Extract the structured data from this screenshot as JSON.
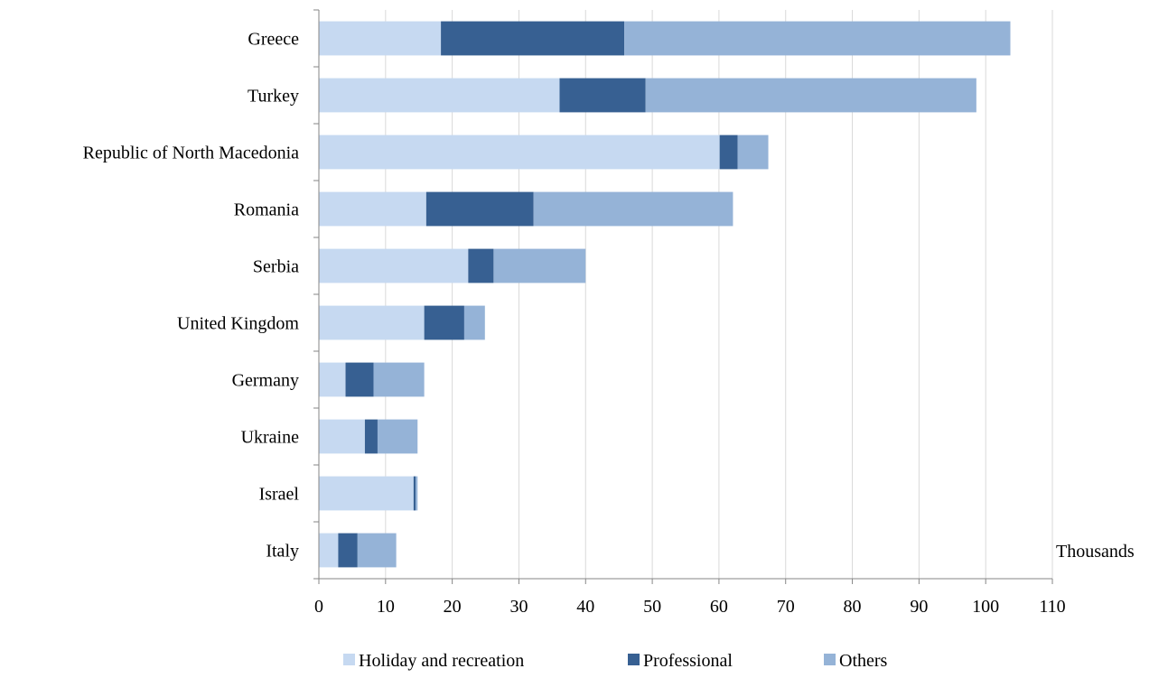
{
  "chart_data": {
    "type": "bar",
    "orientation": "horizontal",
    "stacked": true,
    "categories": [
      "Greece",
      "Turkey",
      "Republic of North Macedonia",
      "Romania",
      "Serbia",
      "United Kingdom",
      "Germany",
      "Ukraine",
      "Israel",
      "Italy"
    ],
    "series": [
      {
        "name": "Holiday and recreation",
        "color": "#c6d9f1",
        "values": [
          18.3,
          36.1,
          60.1,
          16.1,
          22.4,
          15.8,
          4.0,
          6.9,
          14.2,
          2.9
        ]
      },
      {
        "name": "Professional",
        "color": "#376092",
        "values": [
          27.5,
          12.9,
          2.7,
          16.1,
          3.8,
          6.0,
          4.2,
          1.9,
          0.3,
          2.9
        ]
      },
      {
        "name": "Others",
        "color": "#95b3d7",
        "values": [
          57.9,
          49.6,
          4.6,
          29.9,
          13.8,
          3.1,
          7.6,
          6.0,
          0.3,
          5.8
        ]
      }
    ],
    "x_ticks": [
      "0",
      "10",
      "20",
      "30",
      "40",
      "50",
      "60",
      "70",
      "80",
      "90",
      "100",
      "110"
    ],
    "xlim": [
      0,
      110
    ],
    "x_unit_label": "Thousands",
    "title": "",
    "xlabel": "",
    "ylabel": "",
    "grid": "vertical",
    "legend_position": "bottom"
  }
}
